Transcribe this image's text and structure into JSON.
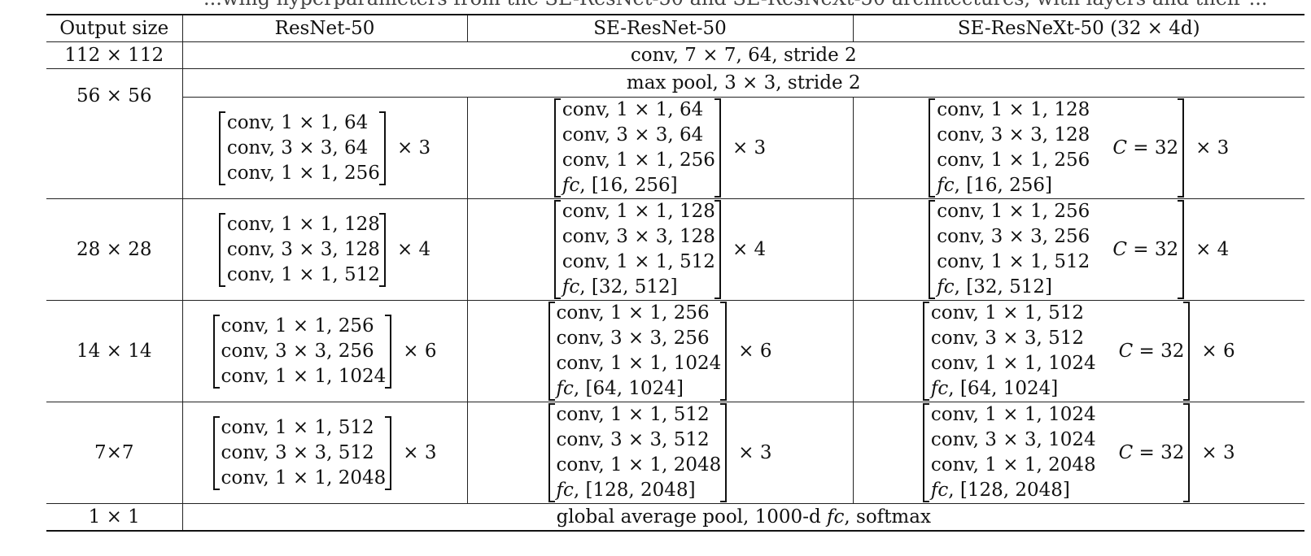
{
  "caption_fragment": "...wing hyperparameters from the SE-ResNet-50 and SE-ResNeXt-50 architectures, with layers and their ...",
  "headers": [
    "Output size",
    "ResNet-50",
    "SE-ResNet-50",
    "SE-ResNeXt-50 (32 × 4d)"
  ],
  "row_conv1": {
    "size": "112 × 112",
    "desc": "conv, 7 × 7, 64, stride 2"
  },
  "row_pool": {
    "size": "56 × 56",
    "desc": "max pool, 3 × 3, stride 2"
  },
  "stages": [
    {
      "resnet": [
        "conv, 1 × 1, 64",
        "conv, 3 × 3, 64",
        "conv, 1 × 1, 256"
      ],
      "resnet_rep": "× 3",
      "se_resnet": [
        "conv, 1 × 1, 64",
        "conv, 3 × 3, 64",
        "conv, 1 × 1, 256",
        "fc, [16, 256]"
      ],
      "se_resnet_rep": "× 3",
      "se_resnext": [
        "conv, 1 × 1, 128",
        "conv, 3 × 3, 128",
        "conv, 1 × 1, 256",
        "fc, [16, 256]"
      ],
      "se_resnext_c": "C = 32",
      "se_resnext_rep": "× 3"
    },
    {
      "size": "28 × 28",
      "resnet": [
        "conv, 1 × 1, 128",
        "conv, 3 × 3, 128",
        "conv, 1 × 1, 512"
      ],
      "resnet_rep": "× 4",
      "se_resnet": [
        "conv, 1 × 1, 128",
        "conv, 3 × 3, 128",
        "conv, 1 × 1, 512",
        "fc, [32, 512]"
      ],
      "se_resnet_rep": "× 4",
      "se_resnext": [
        "conv, 1 × 1, 256",
        "conv, 3 × 3, 256",
        "conv, 1 × 1, 512",
        "fc, [32, 512]"
      ],
      "se_resnext_c": "C = 32",
      "se_resnext_rep": "× 4"
    },
    {
      "size": "14 × 14",
      "resnet": [
        "conv, 1 × 1, 256",
        "conv, 3 × 3, 256",
        "conv, 1 × 1, 1024"
      ],
      "resnet_rep": "× 6",
      "se_resnet": [
        "conv, 1 × 1, 256",
        "conv, 3 × 3, 256",
        "conv, 1 × 1, 1024",
        "fc, [64, 1024]"
      ],
      "se_resnet_rep": "× 6",
      "se_resnext": [
        "conv, 1 × 1, 512",
        "conv, 3 × 3, 512",
        "conv, 1 × 1, 1024",
        "fc, [64, 1024]"
      ],
      "se_resnext_c": "C = 32",
      "se_resnext_rep": "× 6"
    },
    {
      "size": "7×7",
      "resnet": [
        "conv, 1 × 1, 512",
        "conv, 3 × 3, 512",
        "conv, 1 × 1, 2048"
      ],
      "resnet_rep": "× 3",
      "se_resnet": [
        "conv, 1 × 1, 512",
        "conv, 3 × 3, 512",
        "conv, 1 × 1, 2048",
        "fc, [128, 2048]"
      ],
      "se_resnet_rep": "× 3",
      "se_resnext": [
        "conv, 1 × 1, 1024",
        "conv, 3 × 3, 1024",
        "conv, 1 × 1, 2048",
        "fc, [128, 2048]"
      ],
      "se_resnext_c": "C = 32",
      "se_resnext_rep": "× 3"
    }
  ],
  "row_final": {
    "size": "1 × 1",
    "desc_pre": "global average pool, 1000-d ",
    "desc_fc": "fc",
    "desc_post": ", softmax"
  }
}
